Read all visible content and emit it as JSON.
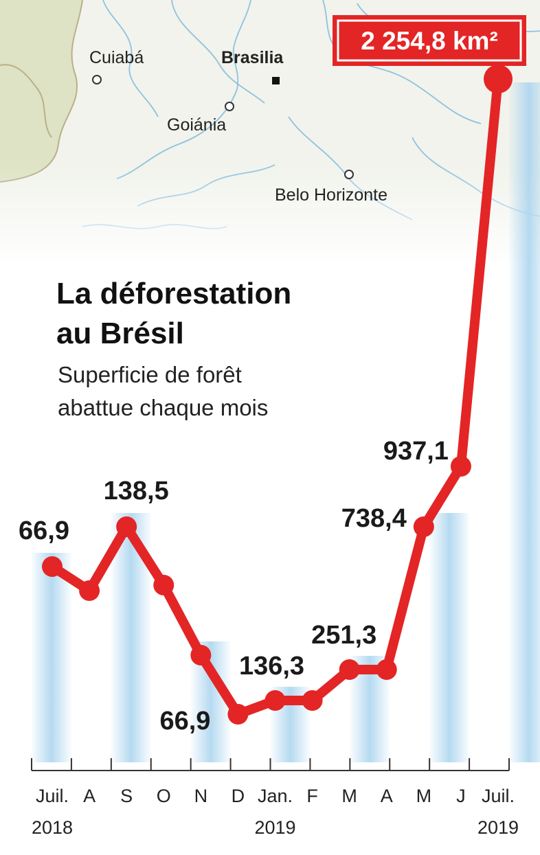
{
  "map": {
    "cities": [
      {
        "name": "Cuiabá",
        "capital": false
      },
      {
        "name": "Brasilia",
        "capital": true
      },
      {
        "name": "Goiánia",
        "capital": false
      },
      {
        "name": "Belo Horizonte",
        "capital": false
      }
    ]
  },
  "chart_data": {
    "type": "line",
    "title": "La déforestation au Brésil",
    "title_lines": [
      "La déforestation",
      "au Brésil"
    ],
    "subtitle": "Superficie de forêt abattue chaque mois",
    "subtitle_lines": [
      "Superficie de forêt",
      "abattue chaque mois"
    ],
    "categories": [
      "Juil.",
      "A",
      "S",
      "O",
      "N",
      "D",
      "Jan.",
      "F",
      "M",
      "A",
      "M",
      "J",
      "Juil."
    ],
    "year_labels": [
      {
        "text": "2018",
        "index": 0
      },
      {
        "text": "2019",
        "index": 6
      },
      {
        "text": "2019",
        "index": 12
      }
    ],
    "values": [
      66.9,
      62,
      138.5,
      100,
      70,
      66.9,
      136.3,
      136.3,
      251.3,
      251.3,
      738.4,
      937.1,
      2254.8
    ],
    "data_labels": [
      {
        "index": 0,
        "text": "66,9"
      },
      {
        "index": 2,
        "text": "138,5"
      },
      {
        "index": 5,
        "text": "66,9"
      },
      {
        "index": 6,
        "text": "136,3"
      },
      {
        "index": 8,
        "text": "251,3"
      },
      {
        "index": 10,
        "text": "738,4"
      },
      {
        "index": 11,
        "text": "937,1"
      }
    ],
    "highlight": {
      "index": 12,
      "text": "2 254,8 km²"
    },
    "grid": false,
    "colors": {
      "line": "#e32526",
      "badge": "#e32526",
      "stripe": "#a8d3ee",
      "map_land": "#eef2e6",
      "map_river": "#8fc2de"
    }
  }
}
